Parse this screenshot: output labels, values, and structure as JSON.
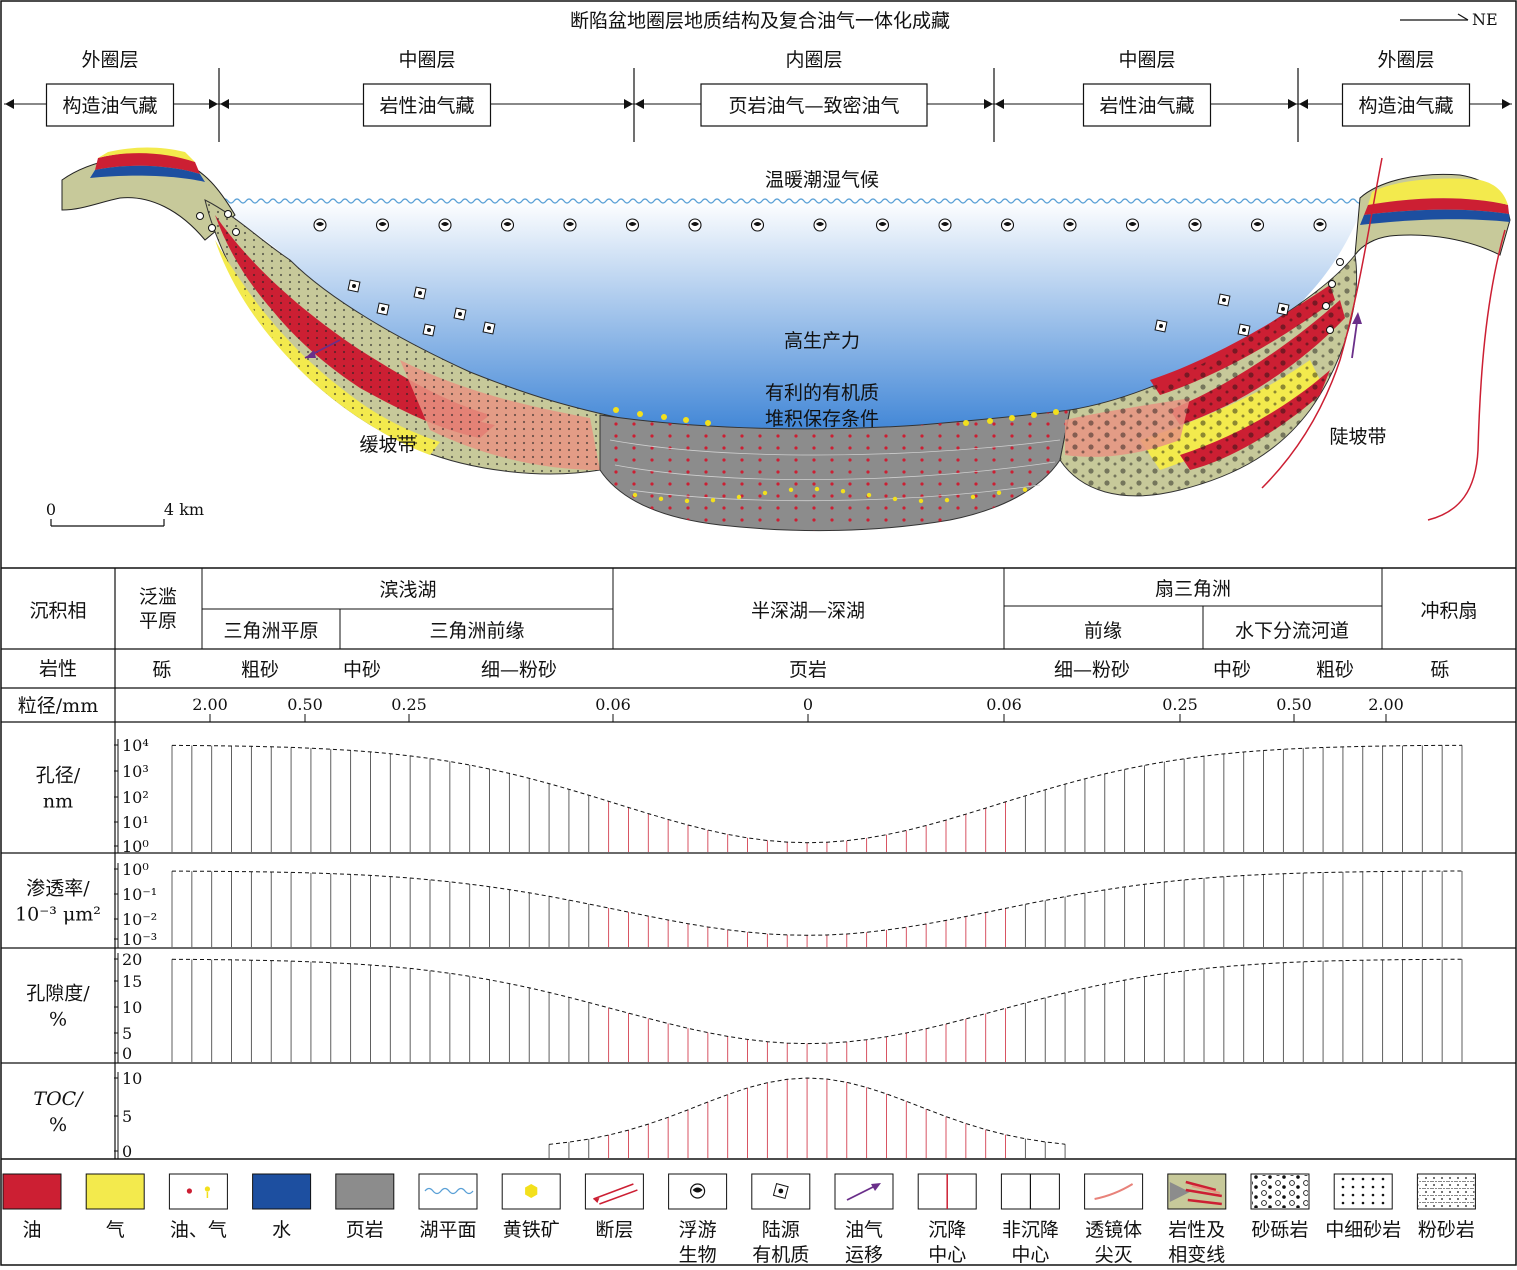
{
  "title": "断陷盆地圈层地质结构及复合油气一体化成藏",
  "north_arrow": "NE",
  "zones": [
    {
      "ring": "外圈层",
      "reservoir": "构造油气藏"
    },
    {
      "ring": "中圈层",
      "reservoir": "岩性油气藏"
    },
    {
      "ring": "内圈层",
      "reservoir": "页岩油气—致密油气"
    },
    {
      "ring": "中圈层",
      "reservoir": "岩性油气藏"
    },
    {
      "ring": "外圈层",
      "reservoir": "构造油气藏"
    }
  ],
  "section_labels": {
    "climate": "温暖潮湿气候",
    "productivity": "高生产力",
    "preservation_line1": "有利的有机质",
    "preservation_line2": "堆积保存条件",
    "gentle_slope": "缓坡带",
    "steep_slope": "陡坡带"
  },
  "scale_bar": {
    "start": "0",
    "end": "4 km"
  },
  "table": {
    "facies_label": "沉积相",
    "facies": {
      "floodplain": "泛滥平原",
      "shore_lake": "滨浅湖",
      "delta_plain": "三角洲平原",
      "delta_front": "三角洲前缘",
      "deep_lake": "半深湖—深湖",
      "fan_delta": "扇三角洲",
      "fan_front": "前缘",
      "underwater_channel": "水下分流河道",
      "alluvial_fan": "冲积扇"
    },
    "lithology_label": "岩性",
    "lithology": [
      "砾",
      "粗砂",
      "中砂",
      "细—粉砂",
      "页岩",
      "细—粉砂",
      "中砂",
      "粗砂",
      "砾"
    ],
    "grain_label": "粒径/mm",
    "grain_ticks": [
      "2.00",
      "0.50",
      "0.25",
      "0.06",
      "0",
      "0.06",
      "0.25",
      "0.50",
      "2.00"
    ]
  },
  "chart_data": [
    {
      "type": "bar",
      "title": "",
      "ylabel": "孔径/nm",
      "ylabel_line1": "孔径/",
      "ylabel_line2": "nm",
      "yscale": "log",
      "y_ticks": [
        "10⁴",
        "10³",
        "10²",
        "10¹",
        "10⁰"
      ],
      "ylim": [
        0,
        4.6
      ],
      "profile": "inverted-bell",
      "center_min": 0.15,
      "edge_max": 4.6
    },
    {
      "type": "bar",
      "title": "",
      "ylabel": "渗透率/10⁻³ μm²",
      "ylabel_line1": "渗透率/",
      "ylabel_line2": "10⁻³ μm²",
      "yscale": "log",
      "y_ticks": [
        "10⁰",
        "10⁻¹",
        "10⁻²",
        "10⁻³"
      ],
      "ylim": [
        -3.2,
        0.6
      ],
      "profile": "inverted-bell",
      "center_min": -3.0,
      "edge_max": 0.5
    },
    {
      "type": "bar",
      "title": "",
      "ylabel": "孔隙度/%",
      "ylabel_line1": "孔隙度/",
      "ylabel_line2": "%",
      "yscale": "linear",
      "y_ticks": [
        "20",
        "15",
        "10",
        "5",
        "0"
      ],
      "ylim": [
        0,
        20
      ],
      "profile": "inverted-bell",
      "center_min": 2,
      "edge_max": 20
    },
    {
      "type": "bar",
      "title": "",
      "ylabel": "TOC/%",
      "ylabel_line1": "TOC/",
      "ylabel_line2": "%",
      "yscale": "linear",
      "y_ticks": [
        "10",
        "5",
        "0"
      ],
      "ylim": [
        0,
        10
      ],
      "profile": "bell",
      "center_max": 10,
      "edge_min": 0.3
    }
  ],
  "legend": [
    {
      "label": "油",
      "icon": "oil-swatch",
      "color": "#cc1f33"
    },
    {
      "label": "气",
      "icon": "gas-swatch",
      "color": "#f3ea4d"
    },
    {
      "label": "油、气",
      "icon": "oil-gas-dots"
    },
    {
      "label": "水",
      "icon": "water-swatch",
      "color": "#1d4fa0"
    },
    {
      "label": "页岩",
      "icon": "shale-swatch",
      "color": "#8c8c8c"
    },
    {
      "label": "湖平面",
      "icon": "lake-level-wave",
      "color": "#5aa0d6"
    },
    {
      "label": "黄铁矿",
      "icon": "pyrite-hexagon",
      "color": "#f3e01c"
    },
    {
      "label": "断层",
      "icon": "fault-lines",
      "color": "#cc1f33"
    },
    {
      "label": "浮游\n生物",
      "icon": "plankton-icon"
    },
    {
      "label": "陆源\n有机质",
      "icon": "terrestrial-organic-icon"
    },
    {
      "label": "油气\n运移",
      "icon": "migration-arrow",
      "color": "#6a2f8a"
    },
    {
      "label": "沉降\n中心",
      "icon": "subsidence-center-line",
      "color": "#cc1f33"
    },
    {
      "label": "非沉降\n中心",
      "icon": "non-subsidence-line"
    },
    {
      "label": "透镜体\n尖灭",
      "icon": "lens-pinchout",
      "color": "#e8827a"
    },
    {
      "label": "岩性及\n相变线",
      "icon": "facies-change-swatch"
    },
    {
      "label": "砂砾岩",
      "icon": "conglomerate-pattern"
    },
    {
      "label": "中细砂岩",
      "icon": "sandstone-pattern"
    },
    {
      "label": "粉砂岩",
      "icon": "siltstone-pattern"
    }
  ],
  "colors": {
    "oil": "#cc1f33",
    "gas": "#f3ea4d",
    "water": "#1d4fa0",
    "shale": "#8c8c8c",
    "sand": "#c7c99a",
    "lens": "#e89482",
    "lake_top": "#f2f8ff",
    "lake_bottom": "#4d8fd8"
  }
}
